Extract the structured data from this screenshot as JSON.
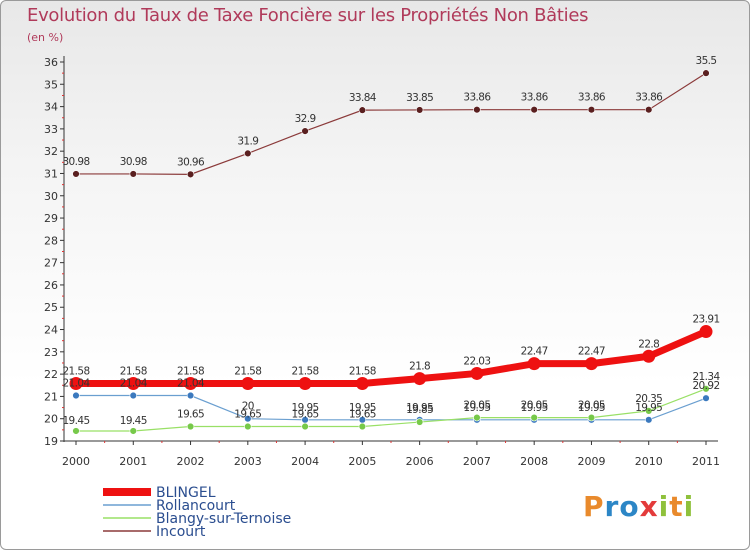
{
  "title": "Evolution du Taux de Taxe Foncière sur les Propriétés Non Bâties",
  "unit_label": "(en %)",
  "logo_text": "Proxiti",
  "chart_data": {
    "type": "line",
    "title": "Evolution du Taux de Taxe Foncière sur les Propriétés Non Bâties",
    "ylabel": "(en %)",
    "xlabel": "",
    "x": [
      "2000",
      "2001",
      "2002",
      "2003",
      "2004",
      "2005",
      "2006",
      "2007",
      "2008",
      "2009",
      "2010",
      "2011"
    ],
    "ylim": [
      19,
      36
    ],
    "yticks": [
      "19",
      "20",
      "21",
      "22",
      "23",
      "24",
      "25",
      "26",
      "27",
      "28",
      "29",
      "30",
      "31",
      "32",
      "33",
      "34",
      "35",
      "36"
    ],
    "grid": false,
    "legend_position": "bottom-left",
    "series": [
      {
        "name": "BLINGEL",
        "color": "#ee1111",
        "width": 7,
        "values": [
          21.58,
          21.58,
          21.58,
          21.58,
          21.58,
          21.58,
          21.8,
          22.03,
          22.47,
          22.47,
          22.8,
          23.91
        ],
        "labels": [
          "21.58",
          "21.58",
          "21.58",
          "21.58",
          "21.58",
          "21.58",
          "21.8",
          "22.03",
          "22.47",
          "22.47",
          "22.8",
          "23.91"
        ]
      },
      {
        "name": "Rollancourt",
        "color": "#6a9fd0",
        "width": 1.2,
        "values": [
          21.04,
          21.04,
          21.04,
          20,
          19.95,
          19.95,
          19.95,
          19.95,
          19.95,
          19.95,
          19.95,
          20.92
        ],
        "labels": [
          "21.04",
          "21.04",
          "21.04",
          "20",
          "19.95",
          "19.95",
          "19.95",
          "19.95",
          "19.95",
          "19.95",
          "19.95",
          "20.92"
        ]
      },
      {
        "name": "Blangy-sur-Ternoise",
        "color": "#99e066",
        "width": 1.2,
        "values": [
          19.45,
          19.45,
          19.65,
          19.65,
          19.65,
          19.65,
          19.85,
          20.05,
          20.05,
          20.05,
          20.35,
          21.34
        ],
        "labels": [
          "19.45",
          "19.45",
          "19.65",
          "19.65",
          "19.65",
          "19.65",
          "19.85",
          "20.05",
          "20.05",
          "20.05",
          "20.35",
          "21.34"
        ]
      },
      {
        "name": "Incourt",
        "color": "#8b3a3a",
        "width": 1.2,
        "values": [
          30.98,
          30.98,
          30.96,
          31.9,
          32.9,
          33.84,
          33.85,
          33.86,
          33.86,
          33.86,
          33.86,
          35.5
        ],
        "labels": [
          "30.98",
          "30.98",
          "30.96",
          "31.9",
          "32.9",
          "33.84",
          "33.85",
          "33.86",
          "33.86",
          "33.86",
          "33.86",
          "35.5"
        ]
      }
    ]
  }
}
